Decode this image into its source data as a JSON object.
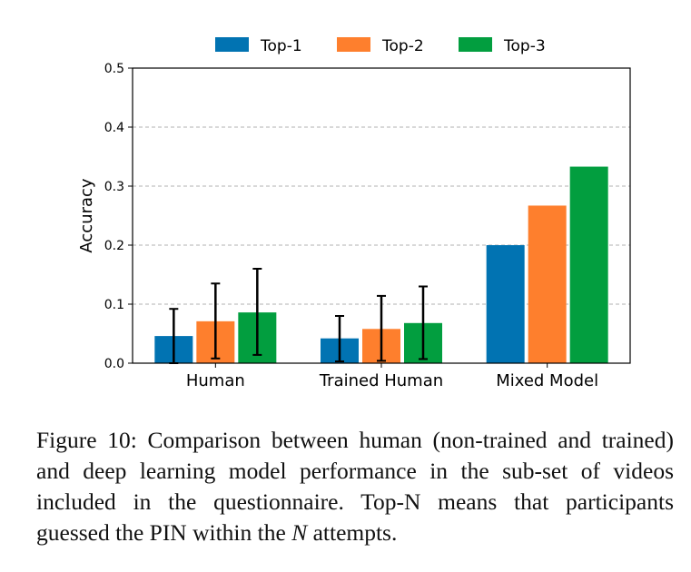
{
  "chart_data": {
    "type": "bar",
    "categories": [
      "Human",
      "Trained Human",
      "Mixed Model"
    ],
    "ylabel": "Accuracy",
    "xlabel": "",
    "ylim": [
      0,
      0.5
    ],
    "yticks": [
      "0.0",
      "0.1",
      "0.2",
      "0.3",
      "0.4",
      "0.5"
    ],
    "grid": "horizontal dashed",
    "legend_placement": "top-center, outside",
    "series": [
      {
        "name": "Top-1",
        "color": "#0173b2",
        "values": [
          0.046,
          0.042,
          0.2
        ],
        "error_low": [
          0.0,
          0.003,
          null
        ],
        "error_high": [
          0.092,
          0.08,
          null
        ]
      },
      {
        "name": "Top-2",
        "color": "#fe7f2d",
        "values": [
          0.071,
          0.058,
          0.267
        ],
        "error_low": [
          0.008,
          0.004,
          null
        ],
        "error_high": [
          0.135,
          0.114,
          null
        ]
      },
      {
        "name": "Top-3",
        "color": "#029e3f",
        "values": [
          0.086,
          0.068,
          0.333
        ],
        "error_low": [
          0.014,
          0.007,
          null
        ],
        "error_high": [
          0.16,
          0.13,
          null
        ]
      }
    ]
  },
  "caption": {
    "text_before": "Figure 10: Comparison between human (non-trained and trained) and deep learning model performance in the sub-set of videos included in the questionnaire. Top-N means that participants guessed the PIN within the ",
    "italic": "N",
    "text_after": " attempts."
  }
}
